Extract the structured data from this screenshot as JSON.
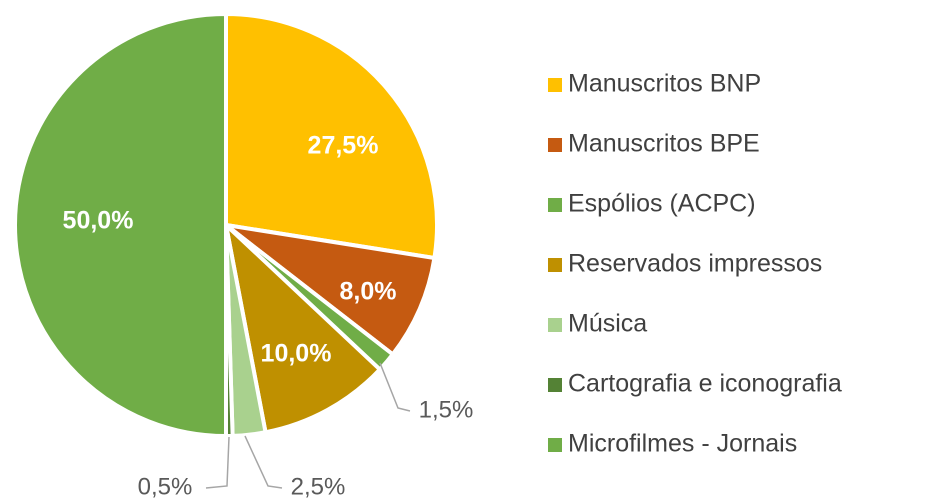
{
  "chart_data": {
    "type": "pie",
    "categories": [
      "Manuscritos BNP",
      "Manuscritos BPE",
      "Espólios (ACPC)",
      "Reservados impressos",
      "Música",
      "Cartografia e iconografia",
      "Microfilmes - Jornais"
    ],
    "values": [
      27.5,
      8.0,
      1.5,
      10.0,
      2.5,
      0.5,
      50.0
    ],
    "value_labels": [
      "27,5%",
      "8,0%",
      "1,5%",
      "10,0%",
      "2,5%",
      "0,5%",
      "50,0%"
    ],
    "colors": [
      "#FFC000",
      "#C55A11",
      "#70AD47",
      "#BF9000",
      "#A9D18E",
      "#548235",
      "#70AD47"
    ],
    "legend": "right"
  }
}
